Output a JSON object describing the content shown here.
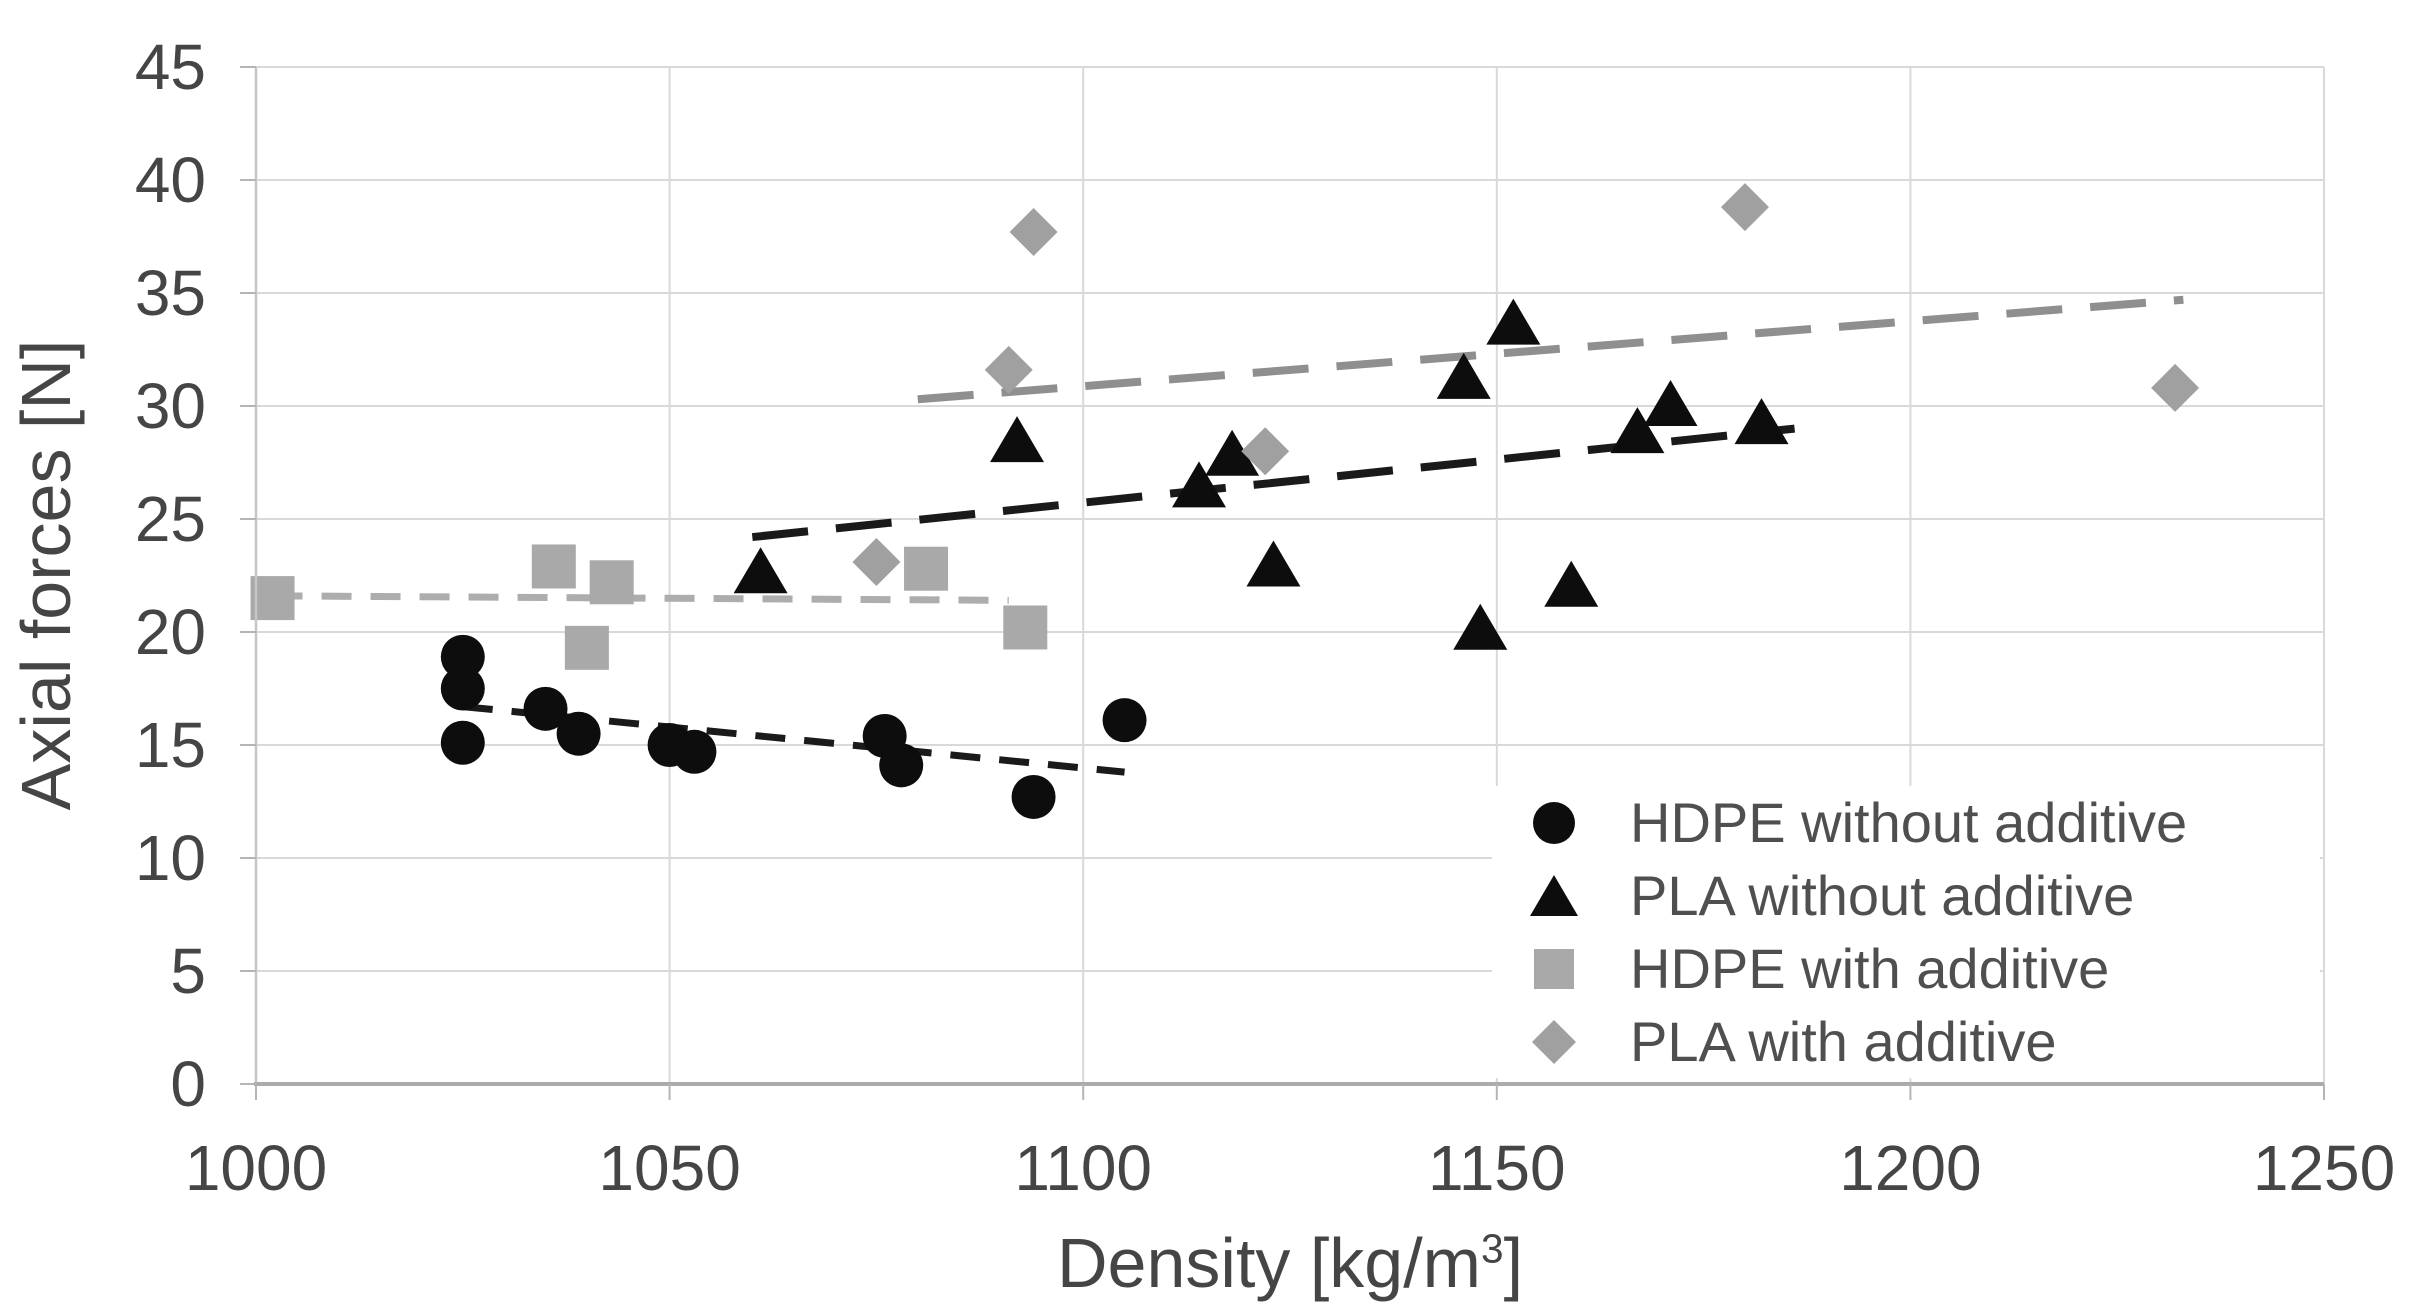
{
  "chart_data": {
    "type": "scatter",
    "title": "",
    "ylabel": "Axial forces [N]",
    "xlabel_parts": {
      "base": "Density [kg/m",
      "sup": "3",
      "close": "]"
    },
    "xlim": [
      1000,
      1250
    ],
    "ylim": [
      0,
      45
    ],
    "xticks": [
      1000,
      1050,
      1100,
      1150,
      1200,
      1250
    ],
    "yticks": [
      0,
      5,
      10,
      15,
      20,
      25,
      30,
      35,
      40,
      45
    ],
    "grid": true,
    "legend_position": "inside-bottom-right",
    "colors": {
      "black_series": "#0d0d0d",
      "gray_square": "#a9a9a9",
      "gray_diamond": "#a0a0a0",
      "black_trend": "#1a1a1a",
      "gray_trend_short": "#adadad",
      "gray_trend_long": "#8f8f8f",
      "gridline": "#d9d9d9",
      "axis_line": "#b5b5b5",
      "text": "#454545"
    },
    "series": [
      {
        "name": "HDPE without additive",
        "marker": "circle",
        "color": "#0d0d0d",
        "points": [
          [
            1025,
            18.9
          ],
          [
            1025,
            17.5
          ],
          [
            1025,
            15.1
          ],
          [
            1035,
            16.6
          ],
          [
            1039,
            15.5
          ],
          [
            1050,
            15.0
          ],
          [
            1053,
            14.7
          ],
          [
            1076,
            15.4
          ],
          [
            1078,
            14.1
          ],
          [
            1094,
            12.7
          ],
          [
            1105,
            16.1
          ]
        ]
      },
      {
        "name": "PLA without additive",
        "marker": "triangle",
        "color": "#0d0d0d",
        "points": [
          [
            1061,
            22.6
          ],
          [
            1092,
            28.4
          ],
          [
            1114,
            26.4
          ],
          [
            1118,
            27.8
          ],
          [
            1123,
            22.9
          ],
          [
            1146,
            31.2
          ],
          [
            1148,
            20.1
          ],
          [
            1152,
            33.6
          ],
          [
            1159,
            22.0
          ],
          [
            1167,
            28.8
          ],
          [
            1171,
            30.0
          ],
          [
            1182,
            29.2
          ]
        ]
      },
      {
        "name": "HDPE with additive",
        "marker": "square",
        "color": "#a9a9a9",
        "points": [
          [
            1002,
            21.5
          ],
          [
            1036,
            22.9
          ],
          [
            1040,
            19.3
          ],
          [
            1043,
            22.2
          ],
          [
            1081,
            22.8
          ],
          [
            1093,
            20.2
          ]
        ]
      },
      {
        "name": "PLA with additive",
        "marker": "diamond",
        "color": "#a0a0a0",
        "points": [
          [
            1075,
            23.1
          ],
          [
            1091,
            31.6
          ],
          [
            1094,
            37.7
          ],
          [
            1122,
            28.0
          ],
          [
            1180,
            38.8
          ],
          [
            1232,
            30.8
          ]
        ]
      }
    ],
    "trendlines": [
      {
        "series": "HDPE without additive",
        "style": "short-dash",
        "color": "#1a1a1a",
        "from": [
          1025,
          16.7
        ],
        "to": [
          1105,
          13.8
        ]
      },
      {
        "series": "PLA without additive",
        "style": "long-dash",
        "color": "#1a1a1a",
        "from": [
          1060,
          24.2
        ],
        "to": [
          1186,
          29.0
        ]
      },
      {
        "series": "HDPE with additive",
        "style": "short-dash",
        "color": "#adadad",
        "from": [
          1002,
          21.6
        ],
        "to": [
          1091,
          21.4
        ]
      },
      {
        "series": "PLA with additive",
        "style": "long-dash",
        "color": "#8f8f8f",
        "from": [
          1080,
          30.3
        ],
        "to": [
          1233,
          34.7
        ]
      }
    ]
  }
}
